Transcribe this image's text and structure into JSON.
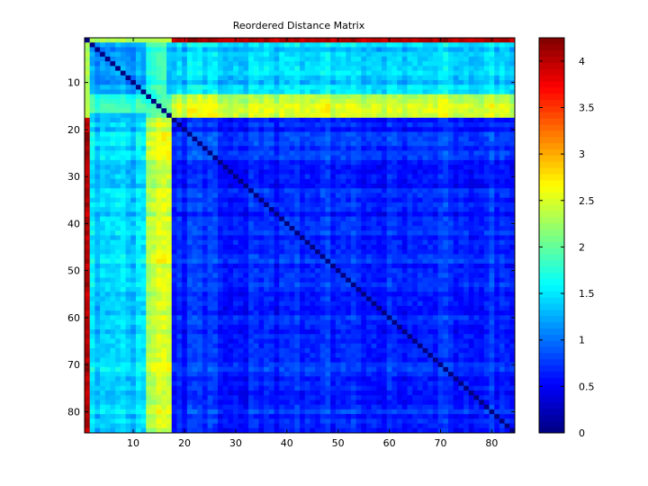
{
  "chart_data": [
    {
      "type": "heatmap",
      "title": "Reordered Distance Matrix",
      "xlabel": "",
      "ylabel": "",
      "n": 84,
      "xlim": [
        0.5,
        84.5
      ],
      "ylim": [
        0.5,
        84.5
      ],
      "y_reversed": true,
      "x_ticks": [
        10,
        20,
        30,
        40,
        50,
        60,
        70,
        80
      ],
      "y_ticks": [
        10,
        20,
        30,
        40,
        50,
        60,
        70,
        80
      ],
      "colormap": "jet",
      "clim": [
        0,
        4.25
      ],
      "cluster_boundaries": [
        1,
        17
      ],
      "approx_block_values": {
        "row1_vs_rest": 4.0,
        "row1_vs_cluster2": 2.3,
        "cluster2_within": 1.2,
        "cluster2_band_rows_13_16": 2.4,
        "cluster2_vs_cluster3": 2.0,
        "cluster2_cols_13_17_vs_cluster3": 2.4,
        "cluster3_within": 0.7,
        "diagonal": 0
      },
      "grid": false,
      "legend": "none"
    },
    {
      "type": "colorbar",
      "range": [
        0,
        4.25
      ],
      "ticks": [
        "0",
        "0.5",
        "1",
        "1.5",
        "2",
        "2.5",
        "3",
        "3.5",
        "4"
      ],
      "tick_values": [
        0,
        0.5,
        1,
        1.5,
        2,
        2.5,
        3,
        3.5,
        4
      ]
    }
  ]
}
